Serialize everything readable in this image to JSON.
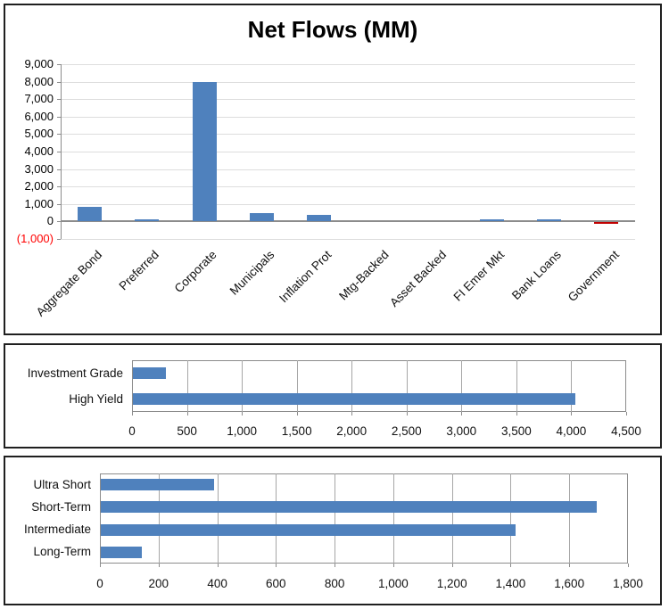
{
  "colors": {
    "background": "#FFFFFF",
    "panel_border": "#1F1F1F",
    "bar_blue": "#4F81BD",
    "bar_red": "#C00000",
    "gridline_light": "#DDDDDD",
    "gridline_mid": "#A6A6A6",
    "axis": "#8C8C8C",
    "negative_tick": "#FF0000",
    "text": "#000000"
  },
  "chart_data": [
    {
      "type": "bar",
      "orientation": "vertical",
      "title": "Net Flows (MM)",
      "xlabel": "",
      "ylabel": "",
      "categories": [
        "Aggregate Bond",
        "Preferred",
        "Corporate",
        "Municipals",
        "Inflation Prot",
        "Mtg-Backed",
        "Asset Backed",
        "FI Emer Mkt",
        "Bank Loans",
        "Government"
      ],
      "values": [
        850,
        150,
        8000,
        500,
        400,
        0,
        0,
        100,
        100,
        -100
      ],
      "bar_colors": [
        "#4F81BD",
        "#4F81BD",
        "#4F81BD",
        "#4F81BD",
        "#4F81BD",
        "#4F81BD",
        "#4F81BD",
        "#4F81BD",
        "#4F81BD",
        "#C00000"
      ],
      "ylim": [
        -1000,
        9000
      ],
      "ytick_step": 1000,
      "ytick_labels": [
        "9,000",
        "8,000",
        "7,000",
        "6,000",
        "5,000",
        "4,000",
        "3,000",
        "2,000",
        "1,000",
        "0",
        "(1,000)"
      ],
      "grid": "horizontal",
      "legend": false
    },
    {
      "type": "bar",
      "orientation": "horizontal",
      "title": "",
      "categories": [
        "Investment Grade",
        "High Yield"
      ],
      "values": [
        300,
        4030
      ],
      "bar_color": "#4F81BD",
      "xlim": [
        0,
        4500
      ],
      "xtick_step": 500,
      "xtick_labels": [
        "0",
        "500",
        "1,000",
        "1,500",
        "2,000",
        "2,500",
        "3,000",
        "3,500",
        "4,000",
        "4,500"
      ],
      "grid": "vertical",
      "legend": false
    },
    {
      "type": "bar",
      "orientation": "horizontal",
      "title": "",
      "categories": [
        "Ultra Short",
        "Short-Term",
        "Intermediate",
        "Long-Term"
      ],
      "values": [
        385,
        1690,
        1415,
        140
      ],
      "bar_color": "#4F81BD",
      "xlim": [
        0,
        1800
      ],
      "xtick_step": 200,
      "xtick_labels": [
        "0",
        "200",
        "400",
        "600",
        "800",
        "1,000",
        "1,200",
        "1,400",
        "1,600",
        "1,800"
      ],
      "grid": "vertical",
      "legend": false
    }
  ]
}
